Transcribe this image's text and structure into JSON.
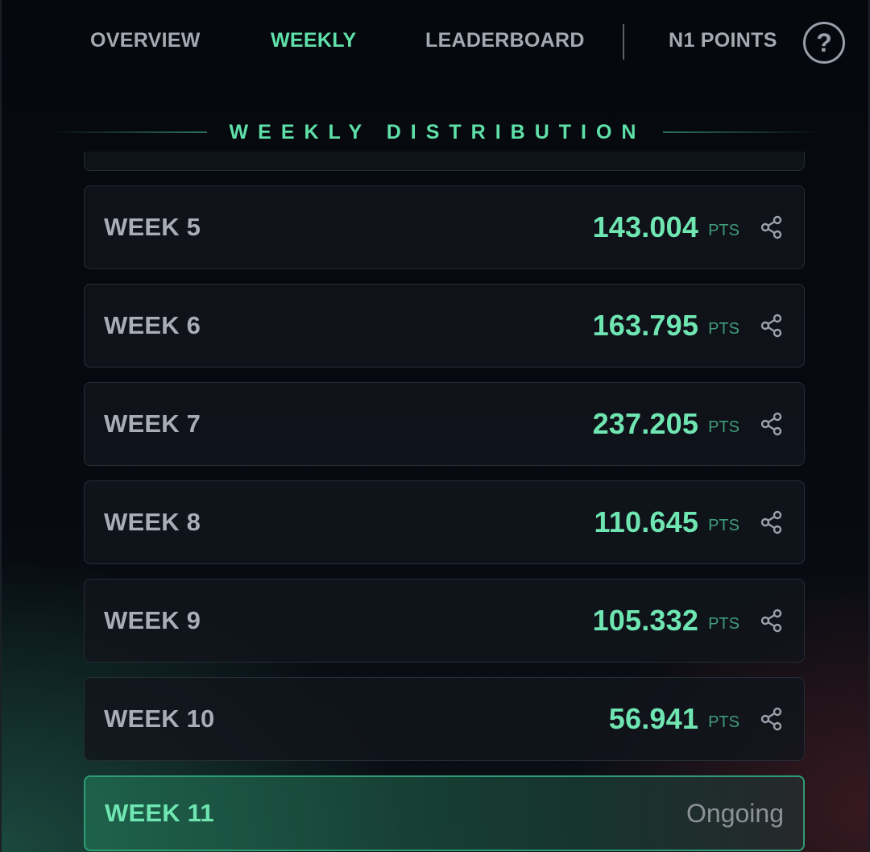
{
  "nav": {
    "tabs": [
      {
        "label": "OVERVIEW",
        "active": false
      },
      {
        "label": "WEEKLY",
        "active": true
      },
      {
        "label": "LEADERBOARD",
        "active": false
      },
      {
        "label": "N1 POINTS",
        "active": false
      }
    ],
    "help_label": "?"
  },
  "section": {
    "title": "WEEKLY DISTRIBUTION"
  },
  "weeks": [
    {
      "label": "WEEK 5",
      "points": "143.004",
      "unit": "PTS"
    },
    {
      "label": "WEEK 6",
      "points": "163.795",
      "unit": "PTS"
    },
    {
      "label": "WEEK 7",
      "points": "237.205",
      "unit": "PTS"
    },
    {
      "label": "WEEK 8",
      "points": "110.645",
      "unit": "PTS"
    },
    {
      "label": "WEEK 9",
      "points": "105.332",
      "unit": "PTS"
    },
    {
      "label": "WEEK 10",
      "points": "56.941",
      "unit": "PTS"
    }
  ],
  "current_week": {
    "label": "WEEK 11",
    "status": "Ongoing"
  },
  "colors": {
    "accent": "#5fe0a8",
    "muted_text": "#a9adb5",
    "background": "#06090f",
    "card_border": "#262c35",
    "active_card_border": "#2f9c74"
  },
  "icons": {
    "share": "share-icon",
    "help": "help-circle-icon"
  }
}
